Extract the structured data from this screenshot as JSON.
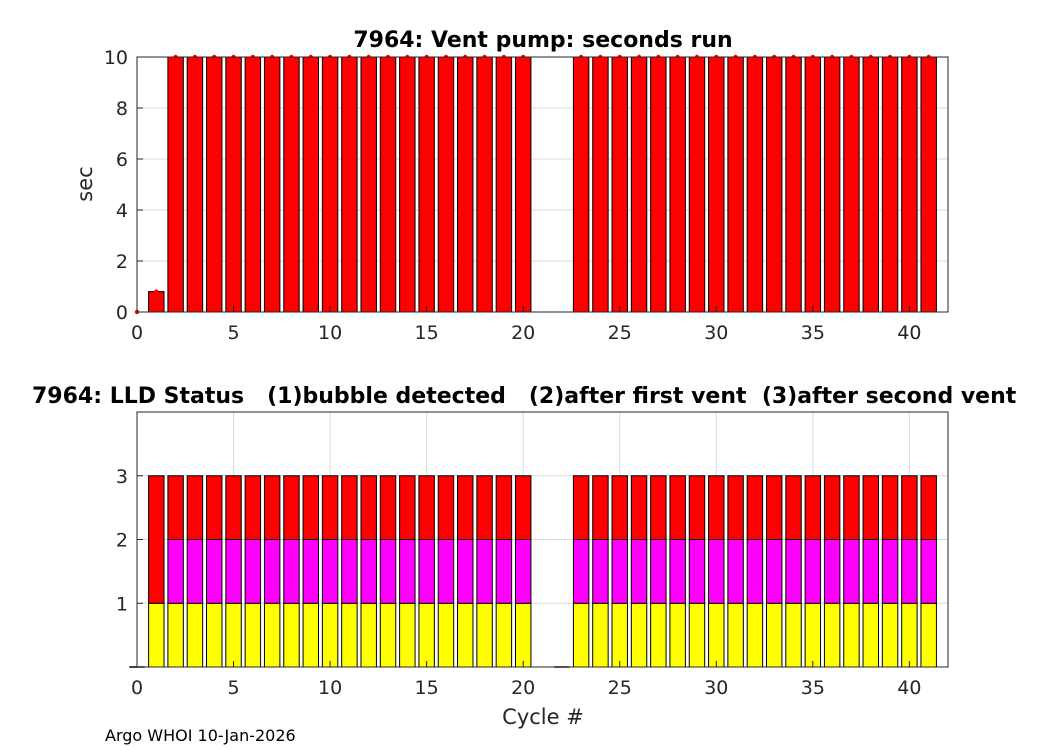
{
  "footer": "Argo WHOI 10-Jan-2026",
  "colors": {
    "bar_red": "#ff0000",
    "magenta": "#ff00ff",
    "yellow": "#ffff00",
    "edge": "#000000",
    "grid": "#d9d9d9"
  },
  "chart_data": [
    {
      "type": "bar",
      "title": "7964: Vent pump: seconds run",
      "xlabel": "",
      "ylabel": "sec",
      "xlim": [
        0,
        42
      ],
      "ylim": [
        0,
        10
      ],
      "grid": true,
      "xticks": [
        0,
        5,
        10,
        15,
        20,
        25,
        30,
        35,
        40
      ],
      "yticks": [
        0,
        2,
        4,
        6,
        8,
        10
      ],
      "x": [
        0,
        1,
        2,
        3,
        4,
        5,
        6,
        7,
        8,
        9,
        10,
        11,
        12,
        13,
        14,
        15,
        16,
        17,
        18,
        19,
        20,
        23,
        24,
        25,
        26,
        27,
        28,
        29,
        30,
        31,
        32,
        33,
        34,
        35,
        36,
        37,
        38,
        39,
        40,
        41
      ],
      "values": [
        0,
        0.8,
        10,
        10,
        10,
        10,
        10,
        10,
        10,
        10,
        10,
        10,
        10,
        10,
        10,
        10,
        10,
        10,
        10,
        10,
        10,
        10,
        10,
        10,
        10,
        10,
        10,
        10,
        10,
        10,
        10,
        10,
        10,
        10,
        10,
        10,
        10,
        10,
        10,
        10
      ]
    },
    {
      "type": "bar",
      "stacked": true,
      "title": "7964: LLD Status   (1)bubble detected   (2)after first vent  (3)after second vent",
      "xlabel": "Cycle #",
      "ylabel": "",
      "xlim": [
        0,
        42
      ],
      "ylim": [
        0,
        4
      ],
      "grid": true,
      "xticks": [
        0,
        5,
        10,
        15,
        20,
        25,
        30,
        35,
        40
      ],
      "yticks": [
        1,
        2,
        3
      ],
      "x": [
        0,
        1,
        2,
        3,
        4,
        5,
        6,
        7,
        8,
        9,
        10,
        11,
        12,
        13,
        14,
        15,
        16,
        17,
        18,
        19,
        20,
        22,
        23,
        24,
        25,
        26,
        27,
        28,
        29,
        30,
        31,
        32,
        33,
        34,
        35,
        36,
        37,
        38,
        39,
        40,
        41
      ],
      "series": [
        {
          "color": "#ffff00",
          "values": [
            0,
            1,
            1,
            1,
            1,
            1,
            1,
            1,
            1,
            1,
            1,
            1,
            1,
            1,
            1,
            1,
            1,
            1,
            1,
            1,
            1,
            0,
            1,
            1,
            1,
            1,
            1,
            1,
            1,
            1,
            1,
            1,
            1,
            1,
            1,
            1,
            1,
            1,
            1,
            1,
            1
          ]
        },
        {
          "color": "#ff00ff",
          "values": [
            0,
            0,
            1,
            1,
            1,
            1,
            1,
            1,
            1,
            1,
            1,
            1,
            1,
            1,
            1,
            1,
            1,
            1,
            1,
            1,
            1,
            0,
            1,
            1,
            1,
            1,
            1,
            1,
            1,
            1,
            1,
            1,
            1,
            1,
            1,
            1,
            1,
            1,
            1,
            1,
            1
          ]
        },
        {
          "color": "#ff0000",
          "values": [
            0,
            2,
            1,
            1,
            1,
            1,
            1,
            1,
            1,
            1,
            1,
            1,
            1,
            1,
            1,
            1,
            1,
            1,
            1,
            1,
            1,
            0,
            1,
            1,
            1,
            1,
            1,
            1,
            1,
            1,
            1,
            1,
            1,
            1,
            1,
            1,
            1,
            1,
            1,
            1,
            1
          ]
        }
      ]
    }
  ]
}
